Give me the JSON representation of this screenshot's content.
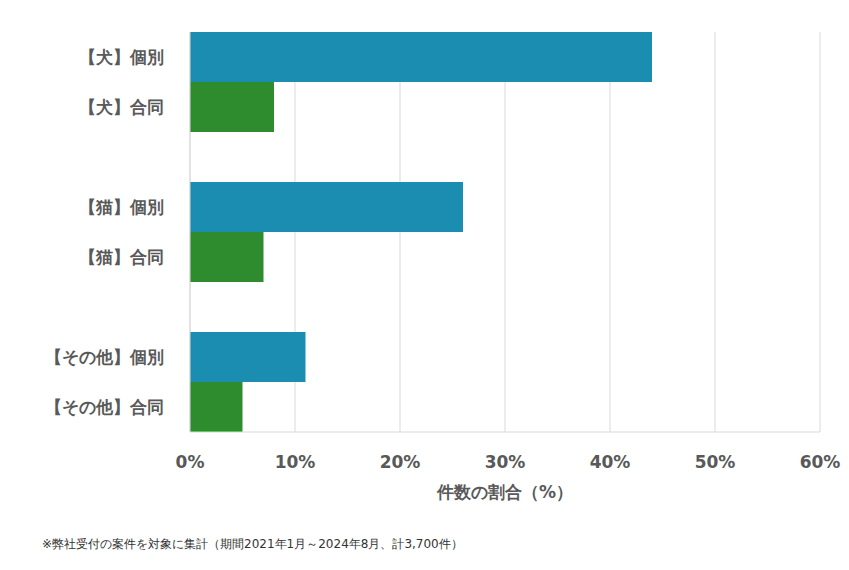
{
  "chart_data": {
    "type": "bar",
    "orientation": "horizontal",
    "categories": [
      "【犬】個別",
      "【犬】合同",
      null,
      "【猫】個別",
      "【猫】合同",
      null,
      "【その他】個別",
      "【その他】合同"
    ],
    "values": [
      44,
      8,
      null,
      26,
      7,
      null,
      11,
      5
    ],
    "colors": [
      "#1a8db0",
      "#2e8b2e",
      null,
      "#1a8db0",
      "#2e8b2e",
      null,
      "#1a8db0",
      "#2e8b2e"
    ],
    "x_label": "件数の割合（%）",
    "xlim": [
      0,
      60
    ],
    "xticks": [
      {
        "value": 0,
        "label": "0%"
      },
      {
        "value": 10,
        "label": "10%"
      },
      {
        "value": 20,
        "label": "20%"
      },
      {
        "value": 30,
        "label": "30%"
      },
      {
        "value": 40,
        "label": "40%"
      },
      {
        "value": 50,
        "label": "50%"
      },
      {
        "value": 60,
        "label": "60%"
      }
    ],
    "grid": true,
    "note": "※弊社受付の案件を対象に集計（期間2021年1月～2024年8月、計3,700件）"
  }
}
